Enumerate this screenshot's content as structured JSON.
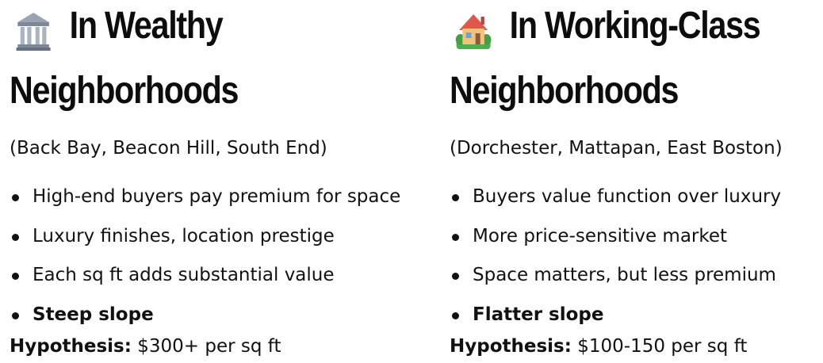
{
  "left": {
    "icon": "classical-building-icon",
    "title_line1": "In Wealthy",
    "title_line2": "Neighborhoods",
    "subtitle": "(Back Bay, Beacon Hill, South End)",
    "bullets": [
      "High-end buyers pay premium for space",
      "Luxury finishes, location prestige",
      "Each sq ft adds substantial value",
      "Steep slope"
    ],
    "hypothesis_label": "Hypothesis:",
    "hypothesis_value": " $300+ per sq ft"
  },
  "right": {
    "icon": "houses-icon",
    "title_line1": "In Working-Class",
    "title_line2": "Neighborhoods",
    "subtitle": "(Dorchester, Mattapan, East Boston)",
    "bullets": [
      "Buyers value function over luxury",
      "More price-sensitive market",
      "Space matters, but less premium",
      "Flatter slope"
    ],
    "hypothesis_label": "Hypothesis:",
    "hypothesis_value": " $100-150 per sq ft"
  }
}
